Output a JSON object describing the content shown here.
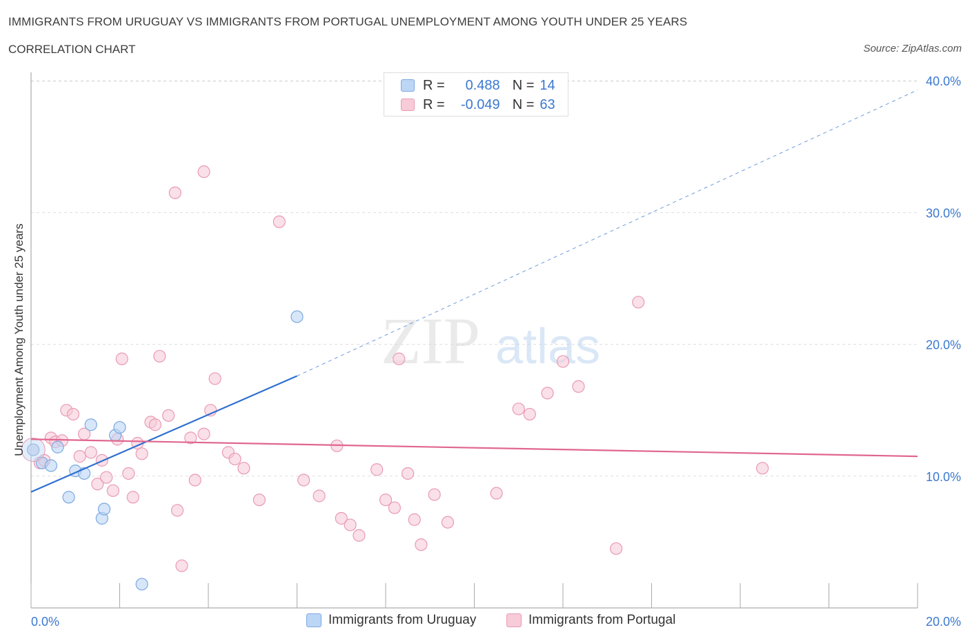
{
  "title": "IMMIGRANTS FROM URUGUAY VS IMMIGRANTS FROM PORTUGAL UNEMPLOYMENT AMONG YOUTH UNDER 25 YEARS",
  "subtitle": "CORRELATION CHART",
  "source": "Source: ZipAtlas.com",
  "watermark": {
    "zip": "ZIP",
    "atlas": "atlas"
  },
  "stats": {
    "r_label": "R =",
    "n_label": "N =",
    "uruguay": {
      "r": "0.488",
      "n": "14"
    },
    "portugal": {
      "r": "-0.049",
      "n": "63"
    }
  },
  "legend": {
    "uruguay": "Immigrants from Uruguay",
    "portugal": "Immigrants from Portugal"
  },
  "colors": {
    "uruguay_fill": "#bcd6f5",
    "uruguay_stroke": "#7aa9e0",
    "uruguay_line": "#2e6fd0",
    "portugal_fill": "#f7cbd8",
    "portugal_stroke": "#e99ab3",
    "portugal_line": "#e0668f",
    "tick_label": "#3b78d0",
    "grid": "#dddddd"
  },
  "chart_data": {
    "type": "scatter",
    "xlabel": "",
    "ylabel": "Unemployment Among Youth under 25 years",
    "xlim": [
      0,
      20
    ],
    "ylim": [
      0,
      40
    ],
    "x_tick_labels": [
      {
        "value": 0,
        "label": "0.0%"
      },
      {
        "value": 20,
        "label": "20.0%"
      }
    ],
    "y_tick_labels": [
      {
        "value": 10,
        "label": "10.0%"
      },
      {
        "value": 20,
        "label": "20.0%"
      },
      {
        "value": 30,
        "label": "30.0%"
      },
      {
        "value": 40,
        "label": "40.0%"
      }
    ],
    "series": [
      {
        "name": "Immigrants from Uruguay",
        "color_key": "uruguay",
        "points": [
          [
            0.05,
            12.0
          ],
          [
            0.25,
            11.0
          ],
          [
            0.45,
            10.8
          ],
          [
            0.6,
            12.2
          ],
          [
            0.85,
            8.4
          ],
          [
            1.0,
            10.4
          ],
          [
            1.2,
            10.2
          ],
          [
            1.35,
            13.9
          ],
          [
            1.6,
            6.8
          ],
          [
            1.65,
            7.5
          ],
          [
            1.9,
            13.1
          ],
          [
            2.0,
            13.7
          ],
          [
            2.5,
            1.8
          ],
          [
            6.0,
            22.1
          ]
        ],
        "trend": {
          "x0": 0,
          "y0": 8.8,
          "x1": 6.0,
          "y1": 17.6,
          "extend_to_x": 20,
          "extend_to_y": 39.3
        }
      },
      {
        "name": "Immigrants from Portugal",
        "color_key": "portugal",
        "points": [
          [
            0.05,
            12.0
          ],
          [
            0.2,
            11.0
          ],
          [
            0.3,
            11.2
          ],
          [
            0.45,
            12.9
          ],
          [
            0.55,
            12.6
          ],
          [
            0.7,
            12.7
          ],
          [
            0.8,
            15.0
          ],
          [
            0.95,
            14.7
          ],
          [
            1.1,
            11.5
          ],
          [
            1.2,
            13.2
          ],
          [
            1.35,
            11.8
          ],
          [
            1.5,
            9.4
          ],
          [
            1.6,
            11.2
          ],
          [
            1.7,
            9.9
          ],
          [
            1.85,
            8.9
          ],
          [
            1.95,
            12.8
          ],
          [
            2.05,
            18.9
          ],
          [
            2.2,
            10.2
          ],
          [
            2.3,
            8.4
          ],
          [
            2.4,
            12.5
          ],
          [
            2.5,
            11.7
          ],
          [
            2.7,
            14.1
          ],
          [
            2.8,
            13.9
          ],
          [
            2.9,
            19.1
          ],
          [
            3.1,
            14.6
          ],
          [
            3.3,
            7.4
          ],
          [
            3.4,
            3.2
          ],
          [
            3.6,
            12.9
          ],
          [
            3.7,
            9.7
          ],
          [
            3.9,
            13.2
          ],
          [
            4.05,
            15.0
          ],
          [
            4.15,
            17.4
          ],
          [
            4.45,
            11.8
          ],
          [
            4.6,
            11.3
          ],
          [
            4.8,
            10.6
          ],
          [
            3.25,
            31.5
          ],
          [
            3.9,
            33.1
          ],
          [
            5.15,
            8.2
          ],
          [
            5.6,
            29.3
          ],
          [
            6.15,
            9.7
          ],
          [
            6.5,
            8.5
          ],
          [
            6.9,
            12.3
          ],
          [
            7.0,
            6.8
          ],
          [
            7.2,
            6.3
          ],
          [
            7.4,
            5.5
          ],
          [
            7.8,
            10.5
          ],
          [
            8.0,
            8.2
          ],
          [
            8.2,
            7.6
          ],
          [
            8.3,
            18.9
          ],
          [
            8.5,
            10.2
          ],
          [
            8.65,
            6.7
          ],
          [
            8.8,
            4.8
          ],
          [
            9.1,
            8.6
          ],
          [
            9.4,
            6.5
          ],
          [
            10.5,
            8.7
          ],
          [
            11.0,
            15.1
          ],
          [
            11.25,
            14.7
          ],
          [
            11.65,
            16.3
          ],
          [
            12.0,
            18.7
          ],
          [
            12.35,
            16.8
          ],
          [
            13.2,
            4.5
          ],
          [
            13.7,
            23.2
          ],
          [
            16.5,
            10.6
          ]
        ],
        "trend": {
          "x0": 0,
          "y0": 12.8,
          "x1": 20,
          "y1": 11.5
        }
      }
    ]
  }
}
